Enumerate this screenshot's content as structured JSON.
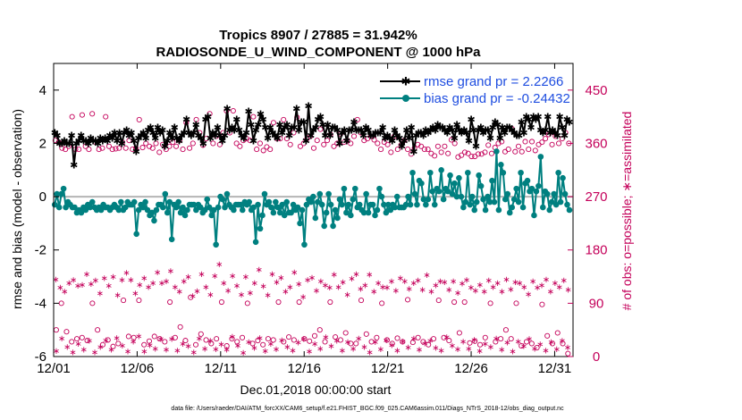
{
  "chart_data": {
    "type": "line",
    "title": "Tropics 8907 / 27885 = 31.942%",
    "subtitle": "RADIOSONDE_U_WIND_COMPONENT @ 1000 hPa",
    "xlabel": "Dec.01,2018 00:00:00 start",
    "ylabel": "rmse and bias (model - observation)",
    "ylabel_right": "# of obs: o=possible; ∗=assimilated",
    "x_tick_labels": [
      "12/01",
      "12/06",
      "12/11",
      "12/16",
      "12/21",
      "12/26",
      "12/31"
    ],
    "x_tick_days": [
      0,
      5,
      10,
      15,
      20,
      25,
      30
    ],
    "xlim": [
      0,
      31.1
    ],
    "y_ticks": [
      "-6",
      "-4",
      "-2",
      "0",
      "2",
      "4"
    ],
    "ylim": [
      -6,
      5
    ],
    "y_right_ticks": [
      "0",
      "90",
      "180",
      "270",
      "360",
      "450"
    ],
    "ylim_right": [
      0,
      495
    ],
    "legend_position": "top-right",
    "colors": {
      "rmse": "#000000",
      "bias": "#008080",
      "obs": "#c4005a",
      "zero_line": "#b4b4b4"
    },
    "series": [
      {
        "name": "rmse grand pr = 2.2266",
        "key": "rmse",
        "values": [
          2.4,
          2.3,
          2.0,
          2.0,
          2.1,
          2.0,
          2.0,
          2.3,
          1.2,
          2.0,
          2.1,
          2.3,
          2.1,
          2.1,
          2.0,
          2.2,
          2.1,
          2.1,
          2.0,
          2.2,
          2.1,
          2.2,
          2.1,
          2.3,
          2.2,
          2.4,
          2.1,
          2.4,
          2.0,
          2.4,
          2.5,
          2.3,
          2.4,
          2.1,
          1.7,
          2.2,
          2.3,
          2.4,
          2.2,
          2.5,
          2.6,
          2.4,
          2.2,
          2.6,
          2.4,
          2.5,
          1.9,
          2.1,
          2.4,
          2.2,
          2.6,
          2.2,
          2.1,
          2.3,
          2.4,
          2.9,
          2.4,
          2.3,
          2.4,
          2.7,
          2.3,
          2.2,
          2.0,
          2.9,
          3.0,
          2.2,
          2.4,
          2.3,
          2.6,
          2.3,
          2.1,
          2.3,
          3.3,
          2.5,
          2.6,
          2.5,
          2.9,
          2.5,
          2.3,
          2.2,
          2.4,
          3.2,
          2.7,
          2.1,
          2.5,
          2.7,
          3.1,
          2.9,
          2.6,
          2.2,
          2.6,
          2.4,
          2.3,
          2.2,
          2.7,
          2.4,
          2.6,
          2.7,
          2.3,
          2.6,
          2.6,
          3.3,
          2.5,
          2.8,
          2.8,
          2.1,
          3.4,
          2.3,
          2.5,
          2.6,
          2.9,
          3.0,
          2.7,
          2.3,
          2.7,
          2.3,
          2.6,
          2.6,
          2.5,
          2.0,
          2.4,
          2.5,
          2.1,
          2.5,
          2.5,
          2.8,
          2.5,
          2.5,
          2.5,
          2.3,
          2.6,
          2.5,
          2.3,
          2.3,
          2.4,
          2.4,
          2.4,
          2.6,
          2.2,
          2.3,
          2.2,
          2.1,
          2.5,
          2.3,
          2.2,
          1.9,
          2.1,
          2.5,
          2.2,
          2.6,
          1.7,
          2.3,
          2.4,
          2.4,
          2.3,
          2.5,
          2.4,
          2.5,
          2.6,
          2.5,
          2.7,
          2.6,
          2.6,
          2.5,
          2.4,
          2.6,
          2.5,
          2.2,
          2.7,
          2.5,
          2.4,
          2.5,
          2.4,
          2.1,
          2.9,
          2.5,
          1.9,
          2.5,
          2.6,
          2.4,
          2.5,
          2.5,
          2.2,
          2.6,
          2.8,
          2.7,
          2.2,
          2.6,
          2.4,
          2.6,
          2.6,
          2.5,
          2.4,
          2.3,
          2.3,
          2.8,
          2.4,
          3.0,
          2.9,
          2.6,
          3.0,
          2.9,
          3.0,
          2.5,
          2.4,
          2.5,
          3.0,
          2.4,
          2.5,
          2.4,
          2.3,
          3.0,
          2.6,
          2.3,
          2.9,
          2.8
        ]
      },
      {
        "name": "bias grand pr = -0.24432",
        "key": "bias",
        "values": [
          -0.3,
          0.1,
          -0.4,
          0.1,
          0.3,
          -0.4,
          -0.2,
          -0.3,
          -0.4,
          -0.4,
          -0.6,
          -0.5,
          -0.6,
          -0.4,
          -0.5,
          -0.3,
          -0.4,
          -0.2,
          -0.4,
          -0.5,
          -0.4,
          -0.5,
          -0.3,
          -0.4,
          -0.4,
          -0.5,
          -0.4,
          -0.3,
          -0.4,
          -0.5,
          -0.2,
          -0.5,
          -0.4,
          -0.2,
          -0.3,
          -0.3,
          -0.2,
          -1.4,
          -0.5,
          -0.3,
          -0.4,
          -0.2,
          -0.5,
          -0.7,
          -0.6,
          -0.9,
          -0.5,
          -0.3,
          -0.3,
          -0.4,
          0.1,
          -0.6,
          -0.2,
          -1.6,
          -0.3,
          -0.4,
          -0.2,
          -0.6,
          -0.4,
          -0.7,
          -0.5,
          -0.3,
          -0.3,
          -0.3,
          -0.5,
          -0.3,
          -0.4,
          -0.6,
          -0.5,
          -0.1,
          -0.4,
          -0.7,
          -0.5,
          -1.8,
          -0.4,
          0.0,
          -0.1,
          -0.4,
          0.1,
          -0.3,
          -0.4,
          -0.5,
          -0.3,
          -0.3,
          -0.3,
          -0.5,
          -0.2,
          -0.3,
          -0.2,
          -0.5,
          -0.4,
          -1.7,
          -0.3,
          -1.2,
          -0.7,
          0.1,
          -0.3,
          -0.2,
          -0.4,
          -0.6,
          -0.2,
          -0.4,
          -0.6,
          -0.3,
          -0.7,
          -0.2,
          -0.6,
          -0.6,
          -0.3,
          -0.5,
          -0.4,
          -1.0,
          -0.5,
          -1.8,
          -0.3,
          -0.1,
          -0.2,
          0.0,
          -0.8,
          -0.2,
          0.1,
          -0.3,
          -1.1,
          -0.6,
          0.1,
          -0.3,
          -1.1,
          -0.5,
          -0.8,
          -0.1,
          -0.3,
          0.3,
          -0.6,
          -0.3,
          -0.7,
          -0.1,
          0.3,
          -0.4,
          -0.3,
          -0.5,
          -0.6,
          0.1,
          -0.6,
          -0.3,
          -0.3,
          -0.7,
          -0.5,
          0.3,
          0.0,
          -0.3,
          -0.6,
          -0.3,
          -0.5,
          -0.3,
          -0.4,
          0.0,
          -0.4,
          -0.4,
          -0.4,
          -0.3,
          0.0,
          -0.3,
          0.9,
          0.1,
          -0.3,
          0.6,
          0.5,
          -0.1,
          -0.3,
          -0.1,
          0.9,
          0.2,
          -0.3,
          0.3,
          0.2,
          1.0,
          -0.1,
          0.3,
          0.2,
          0.8,
          0.1,
          0.5,
          0.0,
          0.7,
          0.0,
          -0.4,
          -0.2,
          0.9,
          -0.3,
          0.0,
          -0.5,
          -0.2,
          0.8,
          0.4,
          -0.1,
          -0.5,
          0.0,
          -0.2,
          0.6,
          -0.2,
          1.7,
          -0.5,
          1.2,
          0.9,
          -0.1,
          0.1,
          -0.6,
          -0.4,
          -0.1,
          0.3,
          -0.2,
          0.9,
          -0.4,
          0.5,
          0.6,
          0.2,
          0.3,
          -0.7,
          0.2,
          0.4,
          1.5,
          -0.4,
          0.2,
          0.1,
          -0.5,
          -0.2,
          0.1,
          -0.3,
          0.9,
          -0.2,
          0.7,
          0.1,
          -0.3,
          -0.5
        ]
      }
    ],
    "obs_possible_upper": [
      365,
      362,
      352,
      350,
      355,
      405,
      350,
      350,
      408,
      355,
      350,
      410,
      362,
      350,
      352,
      405,
      355,
      350,
      351,
      352,
      362,
      352,
      365,
      350,
      352,
      400,
      353,
      360,
      355,
      352,
      360,
      345,
      358,
      350,
      355,
      362,
      355,
      365,
      350,
      395,
      352,
      360,
      400,
      378,
      357,
      368,
      410,
      360,
      372,
      358,
      378,
      415,
      378,
      415,
      360,
      355,
      365,
      368,
      365,
      405,
      350,
      360,
      348,
      354,
      350,
      395,
      368,
      368,
      400,
      368,
      358,
      378,
      404,
      355,
      360,
      368,
      372,
      352,
      365,
      384,
      358,
      365,
      375,
      355,
      360,
      376,
      362,
      365,
      360,
      372,
      400,
      378,
      365,
      368,
      372,
      366,
      360,
      350,
      362,
      358,
      345,
      372,
      350,
      357,
      365,
      350,
      342,
      352,
      358,
      355,
      350,
      350,
      343,
      339,
      355,
      345,
      355,
      343,
      366,
      360,
      337,
      340,
      345,
      343,
      338,
      338,
      342,
      342,
      345,
      357,
      343,
      353,
      360,
      363,
      346,
      350,
      385,
      346,
      355,
      346,
      363,
      350,
      363,
      348,
      358,
      362,
      368,
      375,
      358,
      372,
      360,
      368,
      378,
      360
    ],
    "obs_possible_lower": [
      45,
      90,
      42,
      25,
      30,
      32,
      27,
      90,
      45,
      20,
      28,
      17,
      22,
      95,
      34,
      32,
      95,
      20,
      26,
      34,
      30,
      25,
      92,
      32,
      50,
      27,
      100,
      20,
      38,
      28,
      22,
      30,
      92,
      18,
      30,
      25,
      32,
      90,
      22,
      27,
      20,
      30,
      28,
      92,
      25,
      33,
      28,
      92,
      30,
      26,
      35,
      45,
      25,
      92,
      33,
      28,
      40,
      22,
      22,
      95,
      38,
      25,
      32,
      90,
      28,
      22,
      31,
      25,
      96,
      24,
      32,
      25,
      20,
      30,
      95,
      32,
      27,
      92,
      40,
      92,
      23,
      26,
      20,
      32,
      90,
      25,
      30,
      45,
      30,
      90,
      18,
      25,
      22,
      15,
      88,
      35,
      22,
      40,
      22,
      5
    ],
    "obs_assimilated_upper": [
      131,
      117,
      110,
      125,
      130,
      120,
      122,
      140,
      123,
      129,
      107,
      133,
      120,
      135,
      104,
      130,
      142,
      130,
      107,
      122,
      133,
      118,
      125,
      143,
      125,
      128,
      145,
      118,
      110,
      128,
      135,
      103,
      111,
      140,
      118,
      105,
      137,
      156,
      125,
      112,
      137,
      120,
      105,
      135,
      108,
      125,
      147,
      119,
      104,
      140,
      126,
      134,
      110,
      118,
      143,
      123,
      101,
      130,
      134,
      112,
      128,
      121,
      117,
      139,
      118,
      126,
      105,
      132,
      140,
      115,
      121,
      139,
      110,
      125,
      118,
      117,
      128,
      112,
      133,
      128,
      115,
      125,
      129,
      113,
      138,
      110,
      121,
      128,
      126,
      113,
      128,
      108,
      124,
      130,
      117,
      112,
      122,
      110,
      129,
      118,
      125,
      110,
      131,
      114,
      126,
      125,
      118,
      106,
      128,
      117,
      121,
      131,
      110,
      125,
      118,
      129,
      113
    ],
    "obs_assimilated_lower": [
      10,
      31,
      17,
      8,
      22,
      12,
      27,
      8,
      17,
      28,
      12,
      32,
      19,
      9,
      26,
      35,
      9,
      20,
      14,
      30,
      12,
      30,
      11,
      22,
      18,
      8,
      31,
      14,
      27,
      13,
      21,
      12,
      34,
      19,
      7,
      25,
      15,
      32,
      10,
      22,
      13,
      28,
      17,
      11,
      24,
      30,
      9,
      22,
      14,
      33,
      18,
      27,
      11,
      25,
      14,
      31,
      17,
      8,
      25,
      13,
      28,
      20,
      11,
      26,
      16,
      31,
      12,
      23,
      27,
      15,
      11,
      33,
      19,
      13,
      26,
      14,
      29,
      10,
      22,
      17,
      31,
      12,
      24,
      9,
      26,
      18,
      30,
      14,
      21,
      11,
      25,
      13,
      27,
      16
    ]
  },
  "footer": "data file: /Users/raeder/DAI/ATM_forcXX/CAM6_setup/f.e21.FHIST_BGC.f09_025.CAM6assim.011/Diags_NTrS_2018-12/obs_diag_output.nc"
}
